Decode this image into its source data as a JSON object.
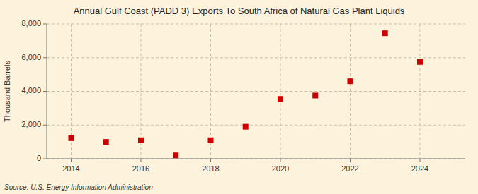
{
  "chart_data": {
    "type": "scatter",
    "title": "Annual Gulf Coast (PADD 3) Exports To South Africa of Natural Gas Plant Liquids",
    "ylabel": "Thousand Barrels",
    "source": "Source: U.S. Energy Information Administration",
    "x": [
      2014,
      2015,
      2016,
      2017,
      2018,
      2019,
      2020,
      2021,
      2022,
      2023,
      2024
    ],
    "values": [
      1220,
      1000,
      1100,
      200,
      1100,
      1900,
      3550,
      3750,
      4600,
      7450,
      5750
    ],
    "color": "#cc0000",
    "marker": "square",
    "grid": true,
    "xlim": [
      2013.3,
      2025.3
    ],
    "xticks": [
      2014,
      2016,
      2018,
      2020,
      2022,
      2024
    ],
    "ylim": [
      0,
      8000
    ],
    "yticks": [
      0,
      {
        "value": 2000,
        "label": "2,000"
      },
      {
        "value": 4000,
        "label": "4,000"
      },
      {
        "value": 6000,
        "label": "6,000"
      },
      {
        "value": 8000,
        "label": "8,000"
      }
    ]
  }
}
